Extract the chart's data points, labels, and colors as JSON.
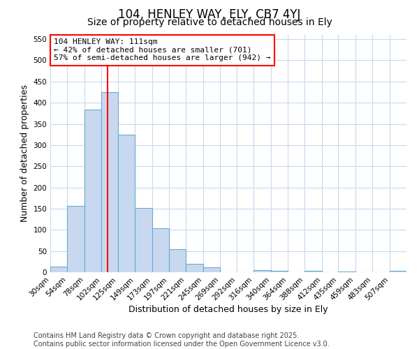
{
  "title1": "104, HENLEY WAY, ELY, CB7 4YJ",
  "title2": "Size of property relative to detached houses in Ely",
  "xlabel": "Distribution of detached houses by size in Ely",
  "ylabel": "Number of detached properties",
  "bin_labels": [
    "30sqm",
    "54sqm",
    "78sqm",
    "102sqm",
    "125sqm",
    "149sqm",
    "173sqm",
    "197sqm",
    "221sqm",
    "245sqm",
    "269sqm",
    "292sqm",
    "316sqm",
    "340sqm",
    "364sqm",
    "388sqm",
    "412sqm",
    "435sqm",
    "459sqm",
    "483sqm",
    "507sqm"
  ],
  "bin_edges": [
    30,
    54,
    78,
    102,
    125,
    149,
    173,
    197,
    221,
    245,
    269,
    292,
    316,
    340,
    364,
    388,
    412,
    435,
    459,
    483,
    507,
    531
  ],
  "bar_heights": [
    14,
    157,
    383,
    425,
    325,
    152,
    103,
    55,
    20,
    12,
    0,
    0,
    5,
    3,
    0,
    3,
    0,
    2,
    0,
    0,
    4
  ],
  "bar_color": "#c8d9ef",
  "bar_edge_color": "#6aaad4",
  "red_line_x": 111,
  "red_line_color": "red",
  "annotation_box_text": "104 HENLEY WAY: 111sqm\n← 42% of detached houses are smaller (701)\n57% of semi-detached houses are larger (942) →",
  "ylim": [
    0,
    560
  ],
  "yticks": [
    0,
    50,
    100,
    150,
    200,
    250,
    300,
    350,
    400,
    450,
    500,
    550
  ],
  "footer_line1": "Contains HM Land Registry data © Crown copyright and database right 2025.",
  "footer_line2": "Contains public sector information licensed under the Open Government Licence v3.0.",
  "bg_color": "#ffffff",
  "plot_bg_color": "#ffffff",
  "grid_color": "#c8d9ef",
  "title1_fontsize": 12,
  "title2_fontsize": 10,
  "axis_label_fontsize": 9,
  "tick_fontsize": 7.5,
  "annotation_fontsize": 8,
  "footer_fontsize": 7
}
